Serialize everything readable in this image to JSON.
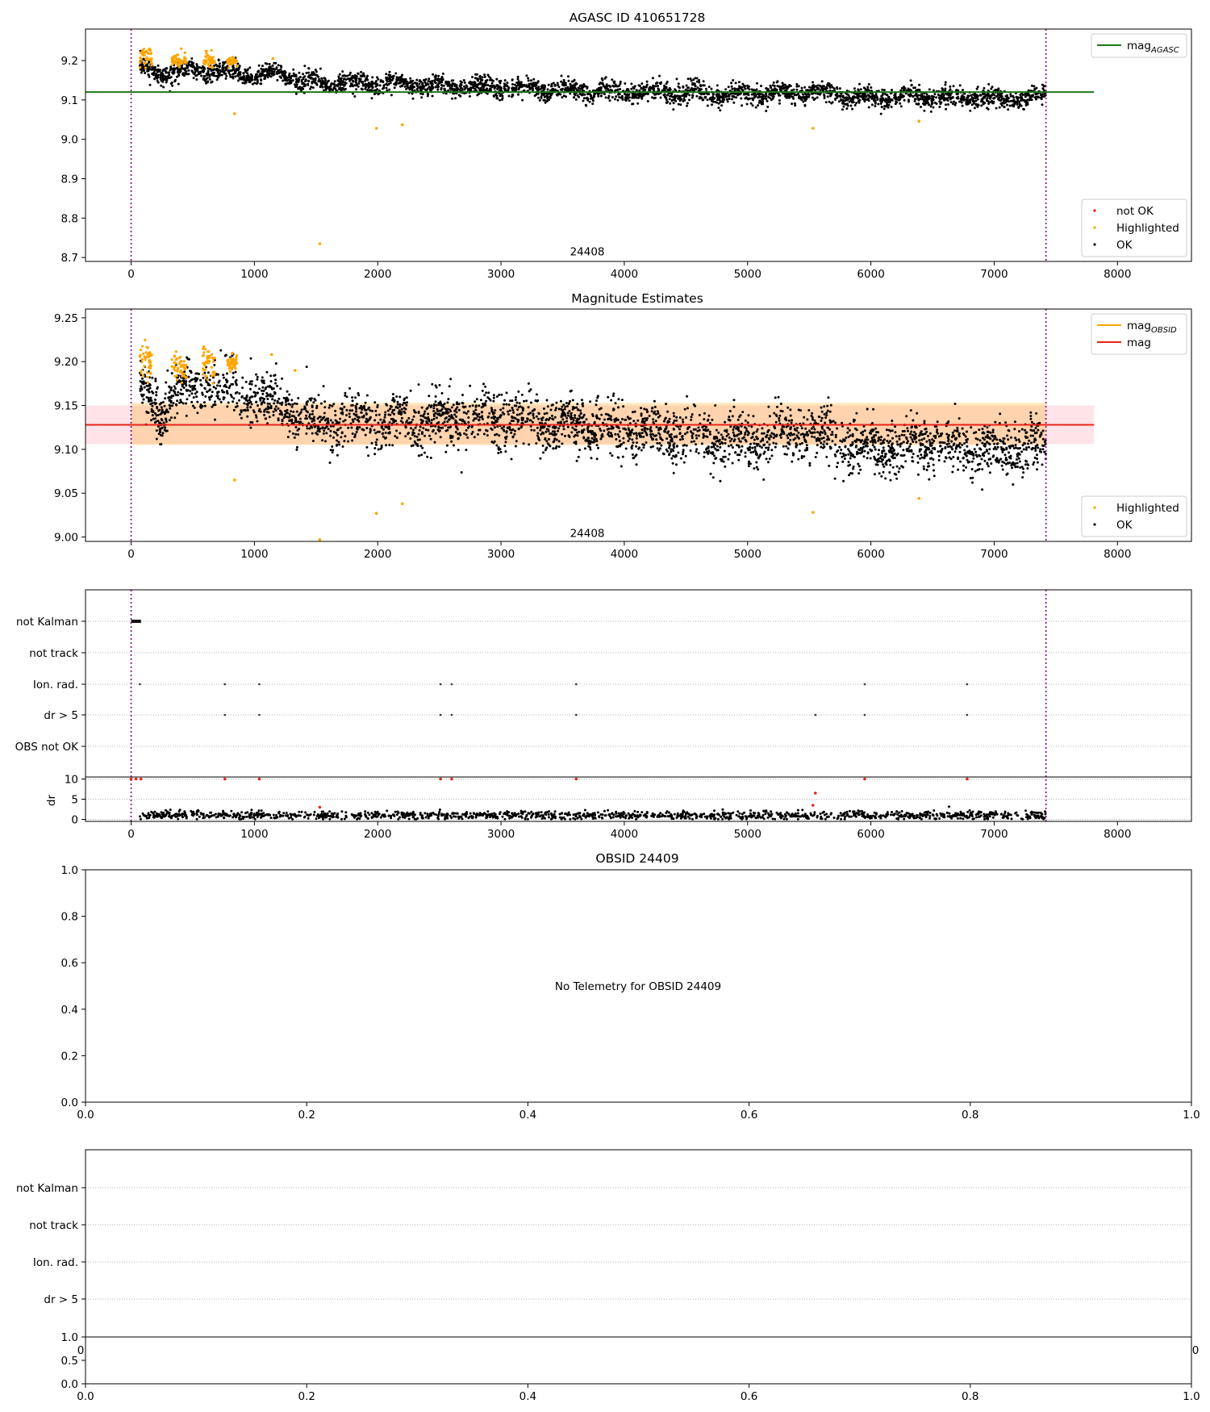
{
  "chart_data": [
    {
      "type": "scatter",
      "title": "AGASC ID 410651728",
      "xlim": [
        -370,
        8600
      ],
      "ylim": [
        8.69,
        9.28
      ],
      "xticks": [
        0,
        1000,
        2000,
        3000,
        4000,
        5000,
        6000,
        7000,
        8000
      ],
      "yticks": [
        8.7,
        8.8,
        8.9,
        9.0,
        9.1,
        9.2
      ],
      "ytick_labels": [
        "8.7",
        "8.8",
        "8.9",
        "9.0",
        "9.1",
        "9.2"
      ],
      "vlines": [
        0,
        7420
      ],
      "hlines": [
        {
          "name": "mag_AGASC",
          "y": 9.12,
          "x_range": [
            -370,
            7810
          ],
          "color": "#1a7a1a"
        }
      ],
      "annotation": "24408",
      "annotation_x": 3700,
      "annotation_y": 8.705,
      "series": [
        {
          "name": "OK",
          "color": "#000000",
          "trend": [
            [
              0,
              9.19
            ],
            [
              300,
              9.165
            ],
            [
              500,
              9.175
            ],
            [
              800,
              9.17
            ],
            [
              1000,
              9.16
            ],
            [
              1200,
              9.17
            ],
            [
              1400,
              9.145
            ],
            [
              2000,
              9.14
            ],
            [
              3000,
              9.13
            ],
            [
              3500,
              9.125
            ],
            [
              4000,
              9.12
            ],
            [
              5000,
              9.115
            ],
            [
              5500,
              9.12
            ],
            [
              6000,
              9.105
            ],
            [
              6500,
              9.11
            ],
            [
              7000,
              9.102
            ],
            [
              7420,
              9.108
            ]
          ],
          "spread": 0.012,
          "x_range": [
            70,
            7420
          ],
          "count": 3400
        },
        {
          "name": "Highlighted",
          "color": "#ffa500",
          "clusters": [
            [
              70,
              170,
              9.21,
              0.012
            ],
            [
              330,
              450,
              9.2,
              0.008
            ],
            [
              580,
              680,
              9.2,
              0.01
            ],
            [
              780,
              860,
              9.198,
              0.005
            ]
          ],
          "outliers": [
            [
              840,
              9.065
            ],
            [
              1530,
              8.735
            ],
            [
              1990,
              9.028
            ],
            [
              2200,
              9.037
            ],
            [
              5530,
              9.028
            ],
            [
              6390,
              9.046
            ],
            [
              1150,
              9.205
            ]
          ]
        },
        {
          "name": "not OK",
          "color": "#ff0000",
          "points": []
        }
      ],
      "legend_top": [
        {
          "label": "mag",
          "sub": "AGASC",
          "color": "#1a7a1a"
        }
      ],
      "legend_bottom": [
        {
          "label": "not OK",
          "color": "#ff0000"
        },
        {
          "label": "Highlighted",
          "color": "#ffa500"
        },
        {
          "label": "OK",
          "color": "#000000"
        }
      ]
    },
    {
      "type": "scatter",
      "title": "Magnitude Estimates",
      "xlim": [
        -370,
        8600
      ],
      "ylim": [
        8.995,
        9.26
      ],
      "xticks": [
        0,
        1000,
        2000,
        3000,
        4000,
        5000,
        6000,
        7000,
        8000
      ],
      "yticks": [
        9.0,
        9.05,
        9.1,
        9.15,
        9.2,
        9.25
      ],
      "ytick_labels": [
        "9.00",
        "9.05",
        "9.10",
        "9.15",
        "9.20",
        "9.25"
      ],
      "vlines": [
        0,
        7420
      ],
      "hlines": [
        {
          "name": "mag",
          "y": 9.128,
          "x_range": [
            -370,
            7810
          ],
          "color": "#e8231a"
        }
      ],
      "bands": [
        {
          "y0": 9.106,
          "y1": 9.15,
          "x_range": [
            -370,
            7810
          ],
          "color": "#ffc0cb",
          "opacity": 0.45
        },
        {
          "y0": 9.105,
          "y1": 9.153,
          "x_range": [
            0,
            7420
          ],
          "color": "#ffa500",
          "opacity": 0.25
        }
      ],
      "annotation": "24408",
      "annotation_x": 3700,
      "annotation_y": 9.0,
      "series": [
        {
          "name": "OK",
          "color": "#000000",
          "trend": [
            [
              0,
              9.18
            ],
            [
              250,
              9.14
            ],
            [
              350,
              9.165
            ],
            [
              600,
              9.175
            ],
            [
              900,
              9.165
            ],
            [
              1200,
              9.15
            ],
            [
              1400,
              9.135
            ],
            [
              2000,
              9.132
            ],
            [
              3000,
              9.133
            ],
            [
              3500,
              9.128
            ],
            [
              4000,
              9.122
            ],
            [
              5000,
              9.11
            ],
            [
              5500,
              9.12
            ],
            [
              6000,
              9.1
            ],
            [
              6500,
              9.108
            ],
            [
              7000,
              9.097
            ],
            [
              7420,
              9.105
            ]
          ],
          "spread": 0.015,
          "x_range": [
            70,
            7420
          ],
          "count": 3400
        },
        {
          "name": "Highlighted",
          "color": "#ffa500",
          "clusters": [
            [
              70,
              170,
              9.205,
              0.012
            ],
            [
              330,
              450,
              9.195,
              0.008
            ],
            [
              580,
              680,
              9.198,
              0.01
            ],
            [
              780,
              860,
              9.198,
              0.005
            ]
          ],
          "outliers": [
            [
              840,
              9.065
            ],
            [
              1530,
              8.997
            ],
            [
              1990,
              9.027
            ],
            [
              2200,
              9.038
            ],
            [
              5530,
              9.028
            ],
            [
              6390,
              9.044
            ],
            [
              1140,
              9.208
            ],
            [
              1330,
              9.19
            ]
          ]
        }
      ],
      "legend_top": [
        {
          "label": "mag",
          "sub": "OBSID",
          "color": "#ffa500"
        },
        {
          "label": "mag",
          "sub": "",
          "color": "#e8231a"
        }
      ],
      "legend_bottom": [
        {
          "label": "Highlighted",
          "color": "#ffa500"
        },
        {
          "label": "OK",
          "color": "#000000"
        }
      ]
    },
    {
      "type": "scatter",
      "title": "",
      "xlim": [
        -370,
        8600
      ],
      "categories": [
        "not Kalman",
        "not track",
        "Ion. rad.",
        "dr > 5",
        "OBS not OK"
      ],
      "vlines": [
        0,
        7420
      ],
      "flags": {
        "not Kalman": {
          "range": [
            0,
            80
          ]
        },
        "not track": {
          "points": []
        },
        "Ion. rad.": {
          "points": [
            70,
            760,
            1040,
            2510,
            2600,
            3610,
            5950,
            6780
          ]
        },
        "dr > 5": {
          "points": [
            760,
            1040,
            2510,
            2600,
            3610,
            5550,
            5950,
            6780
          ]
        },
        "OBS not OK": {
          "points": []
        }
      },
      "subplot": {
        "ylabel": "dr",
        "yticks": [
          0,
          5,
          10
        ],
        "ylim": [
          -0.5,
          10.5
        ],
        "xticks": [
          0,
          1000,
          2000,
          3000,
          4000,
          5000,
          6000,
          7000,
          8000
        ],
        "red_points": [
          [
            0,
            10
          ],
          [
            40,
            10
          ],
          [
            80,
            10
          ],
          [
            760,
            10
          ],
          [
            1040,
            10
          ],
          [
            2510,
            10
          ],
          [
            2600,
            10
          ],
          [
            3610,
            10
          ],
          [
            5950,
            10
          ],
          [
            6780,
            10
          ],
          [
            1530,
            3
          ],
          [
            5530,
            3.5
          ],
          [
            5550,
            6.5
          ]
        ],
        "baseline": {
          "x_range": [
            70,
            7420
          ],
          "mean": 1.0,
          "spread": 0.5,
          "count": 1300
        }
      }
    },
    {
      "type": "scatter",
      "title": "OBSID 24409",
      "xlim": [
        0,
        1
      ],
      "ylim": [
        0,
        1
      ],
      "xticks": [
        0,
        0.2,
        0.4,
        0.6,
        0.8,
        1.0
      ],
      "xtick_labels": [
        "0.0",
        "0.2",
        "0.4",
        "0.6",
        "0.8",
        "1.0"
      ],
      "yticks": [
        0,
        0.2,
        0.4,
        0.6,
        0.8,
        1.0
      ],
      "ytick_labels": [
        "0.0",
        "0.2",
        "0.4",
        "0.6",
        "0.8",
        "1.0"
      ],
      "message": "No Telemetry for OBSID 24409"
    },
    {
      "type": "scatter",
      "title": "",
      "categories": [
        "not Kalman",
        "not track",
        "Ion. rad.",
        "dr > 5"
      ],
      "clipped_tick_left": "0",
      "clipped_tick_right": "0",
      "subplot": {
        "yticks": [
          0,
          0.5,
          1.0
        ],
        "ytick_labels": [
          "0.0",
          "0.5",
          "1.0"
        ],
        "xticks": [
          0,
          0.2,
          0.4,
          0.6,
          0.8,
          1.0
        ],
        "xtick_labels": [
          "0.0",
          "0.2",
          "0.4",
          "0.6",
          "0.8",
          "1.0"
        ]
      }
    }
  ]
}
